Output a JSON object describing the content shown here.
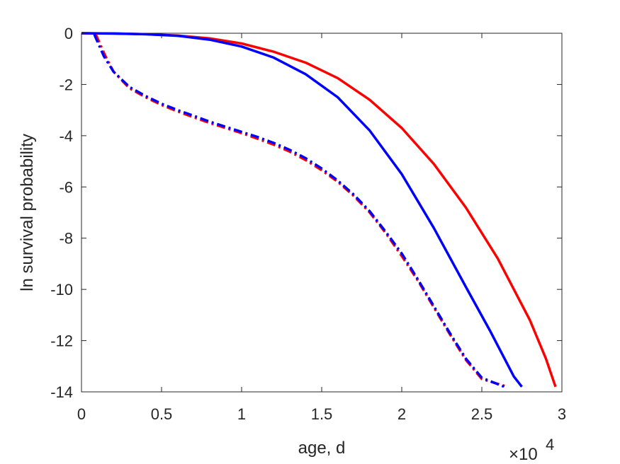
{
  "chart_data": {
    "type": "line",
    "title": "",
    "xlabel": "age, d",
    "ylabel": "ln survival probability",
    "x_multiplier_label": {
      "base": "×10",
      "exponent": "4"
    },
    "xlim": [
      0,
      30000
    ],
    "ylim": [
      -14,
      0
    ],
    "xticks": [
      0,
      5000,
      10000,
      15000,
      20000,
      25000,
      30000
    ],
    "xtick_labels": [
      "0",
      "0.5",
      "1",
      "1.5",
      "2",
      "2.5",
      "3"
    ],
    "yticks": [
      -14,
      -12,
      -10,
      -8,
      -6,
      -4,
      -2,
      0
    ],
    "ytick_labels": [
      "-14",
      "-12",
      "-10",
      "-8",
      "-6",
      "-4",
      "-2",
      "0"
    ],
    "grid": false,
    "legend": "none",
    "series": [
      {
        "color": "#ff0000",
        "style": "solid",
        "points": [
          [
            0,
            0
          ],
          [
            2000,
            -0.01
          ],
          [
            4000,
            -0.04
          ],
          [
            6000,
            -0.09
          ],
          [
            8000,
            -0.2
          ],
          [
            10000,
            -0.4
          ],
          [
            12000,
            -0.72
          ],
          [
            14000,
            -1.15
          ],
          [
            16000,
            -1.75
          ],
          [
            18000,
            -2.6
          ],
          [
            20000,
            -3.7
          ],
          [
            22000,
            -5.1
          ],
          [
            24000,
            -6.8
          ],
          [
            26000,
            -8.8
          ],
          [
            28000,
            -11.2
          ],
          [
            29000,
            -12.7
          ],
          [
            29600,
            -13.8
          ]
        ]
      },
      {
        "color": "#0000ff",
        "style": "solid",
        "points": [
          [
            0,
            0
          ],
          [
            2000,
            -0.01
          ],
          [
            4000,
            -0.04
          ],
          [
            6000,
            -0.1
          ],
          [
            8000,
            -0.25
          ],
          [
            10000,
            -0.52
          ],
          [
            12000,
            -0.95
          ],
          [
            14000,
            -1.6
          ],
          [
            16000,
            -2.5
          ],
          [
            18000,
            -3.8
          ],
          [
            20000,
            -5.5
          ],
          [
            22000,
            -7.6
          ],
          [
            24000,
            -9.9
          ],
          [
            25500,
            -11.6
          ],
          [
            27000,
            -13.4
          ],
          [
            27500,
            -13.8
          ]
        ]
      },
      {
        "color": "#ff0000",
        "style": "dash-dot",
        "points": [
          [
            900,
            -0.05
          ],
          [
            1500,
            -0.9
          ],
          [
            2000,
            -1.5
          ],
          [
            3000,
            -2.15
          ],
          [
            4000,
            -2.5
          ],
          [
            5000,
            -2.8
          ],
          [
            6000,
            -3.05
          ],
          [
            7000,
            -3.28
          ],
          [
            8000,
            -3.5
          ],
          [
            9000,
            -3.7
          ],
          [
            10000,
            -3.9
          ],
          [
            11000,
            -4.12
          ],
          [
            12000,
            -4.35
          ],
          [
            13000,
            -4.62
          ],
          [
            14000,
            -4.95
          ],
          [
            15000,
            -5.35
          ],
          [
            16000,
            -5.8
          ],
          [
            17000,
            -6.35
          ],
          [
            18000,
            -7.0
          ],
          [
            19000,
            -7.8
          ],
          [
            20000,
            -8.7
          ],
          [
            21000,
            -9.65
          ],
          [
            22000,
            -10.7
          ],
          [
            23000,
            -11.75
          ],
          [
            24000,
            -12.75
          ],
          [
            25000,
            -13.5
          ],
          [
            26600,
            -13.8
          ]
        ]
      },
      {
        "color": "#0000ff",
        "style": "dash-dot",
        "points": [
          [
            800,
            -0.05
          ],
          [
            1400,
            -0.9
          ],
          [
            2000,
            -1.5
          ],
          [
            3000,
            -2.1
          ],
          [
            4000,
            -2.45
          ],
          [
            5000,
            -2.75
          ],
          [
            6000,
            -3.0
          ],
          [
            7000,
            -3.22
          ],
          [
            8000,
            -3.45
          ],
          [
            9000,
            -3.65
          ],
          [
            10000,
            -3.85
          ],
          [
            11000,
            -4.05
          ],
          [
            12000,
            -4.28
          ],
          [
            13000,
            -4.55
          ],
          [
            14000,
            -4.88
          ],
          [
            15000,
            -5.28
          ],
          [
            16000,
            -5.75
          ],
          [
            17000,
            -6.3
          ],
          [
            18000,
            -6.95
          ],
          [
            19000,
            -7.75
          ],
          [
            20000,
            -8.6
          ],
          [
            21000,
            -9.6
          ],
          [
            22000,
            -10.65
          ],
          [
            23000,
            -11.7
          ],
          [
            24000,
            -12.7
          ],
          [
            25000,
            -13.45
          ],
          [
            26400,
            -13.8
          ]
        ]
      }
    ]
  }
}
